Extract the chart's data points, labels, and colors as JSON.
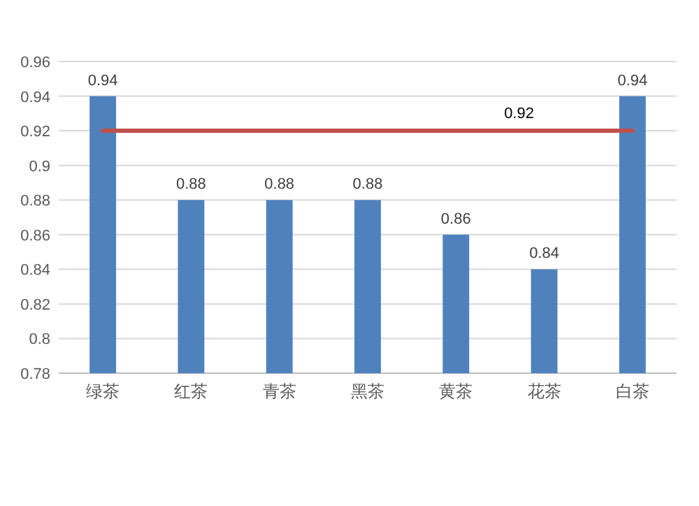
{
  "chart_data": {
    "type": "bar",
    "categories": [
      "绿茶",
      "红茶",
      "青茶",
      "黑茶",
      "黄茶",
      "花茶",
      "白茶"
    ],
    "series": [
      {
        "color": "#4f81bd",
        "values": [
          0.94,
          0.88,
          0.88,
          0.88,
          0.86,
          0.84,
          0.94
        ],
        "value_labels": [
          "0.94",
          "0.88",
          "0.88",
          "0.88",
          "0.86",
          "0.84",
          "0.94"
        ]
      },
      {
        "type": "line",
        "color": "#c0504d",
        "values": [
          0.92,
          0.92,
          0.92,
          0.92,
          0.92,
          0.92,
          0.92
        ],
        "value_labels": [
          null,
          null,
          null,
          null,
          null,
          "0.92",
          null
        ]
      }
    ],
    "ylim": [
      0.78,
      0.96
    ],
    "yticks": [
      0.78,
      0.8,
      0.82,
      0.84,
      0.86,
      0.88,
      0.9,
      0.92,
      0.94,
      0.96
    ],
    "grid": "y"
  }
}
